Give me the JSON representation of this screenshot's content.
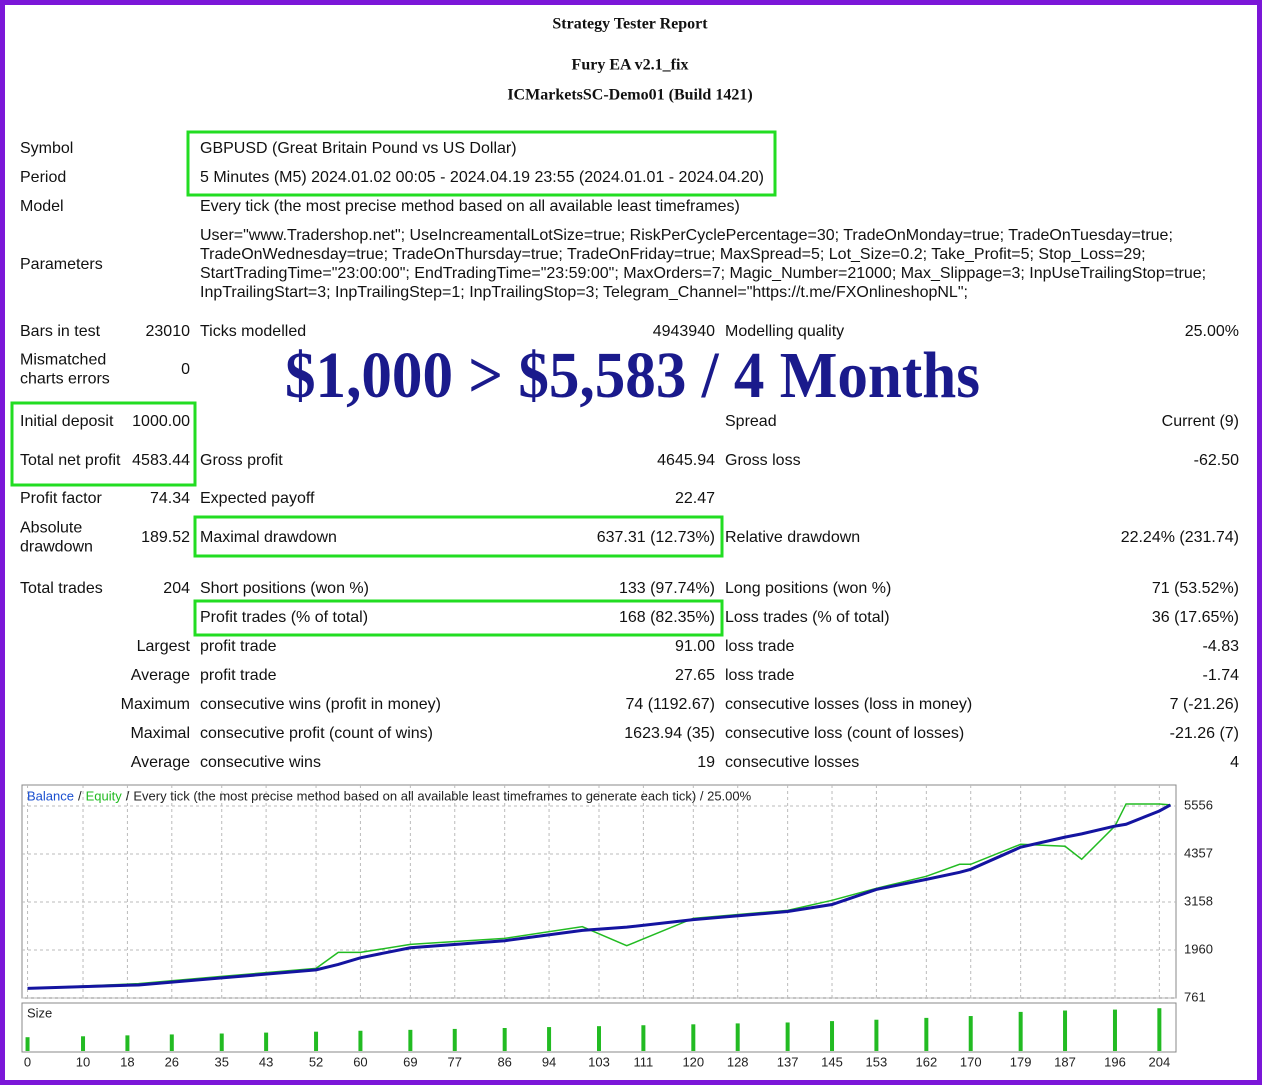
{
  "header": {
    "title": "Strategy Tester Report",
    "subtitle": "Fury EA v2.1_fix",
    "server": "ICMarketsSC-Demo01 (Build 1421)"
  },
  "report": {
    "rows": [
      {
        "a_label": "Symbol",
        "text": "GBPUSD (Great Britain Pound vs US Dollar)"
      },
      {
        "a_label": "Period",
        "text": "5 Minutes (M5) 2024.01.02 00:05 - 2024.04.19 23:55 (2024.01.01 - 2024.04.20)"
      },
      {
        "a_label": "Model",
        "text": "Every tick (the most precise method based on all available least timeframes)"
      },
      {
        "a_label": "Parameters",
        "lines": [
          "User=\"www.Tradershop.net\"; UseIncreamentalLotSize=true; RiskPerCyclePercentage=30; TradeOnMonday=true; TradeOnTuesday=true;",
          "TradeOnWednesday=true; TradeOnThursday=true; TradeOnFriday=true; MaxSpread=5; Lot_Size=0.2; Take_Profit=5; Stop_Loss=29;",
          "StartTradingTime=\"23:00:00\"; EndTradingTime=\"23:59:00\"; MaxOrders=7; Magic_Number=21000; Max_Slippage=3; InpUseTrailingStop=true;",
          "InpTrailingStart=3; InpTrailingStep=1; InpTrailingStop=3; Telegram_Channel=\"https://t.me/FXOnlineshopNL\";"
        ]
      },
      {
        "a_label": "Bars in test",
        "a_value": "23010",
        "b_label": "Ticks modelled",
        "b_value": "4943940",
        "c_label": "Modelling quality",
        "c_value": "25.00%"
      },
      {
        "a_label": "Mismatched charts errors",
        "a_value": "0"
      },
      {
        "a_label": "Initial deposit",
        "a_value": "1000.00",
        "c_label": "Spread",
        "c_value": "Current (9)"
      },
      {
        "a_label": "Total net profit",
        "a_value": "4583.44",
        "b_label": "Gross profit",
        "b_value": "4645.94",
        "c_label": "Gross loss",
        "c_value": "-62.50"
      },
      {
        "a_label": "Profit factor",
        "a_value": "74.34",
        "b_label": "Expected payoff",
        "b_value": "22.47"
      },
      {
        "a_label": "Absolute drawdown",
        "a_value": "189.52",
        "b_label": "Maximal drawdown",
        "b_value": "637.31 (12.73%)",
        "c_label": "Relative drawdown",
        "c_value": "22.24% (231.74)"
      },
      {
        "a_label": "Total trades",
        "a_value": "204",
        "b_label": "Short positions (won %)",
        "b_value": "133 (97.74%)",
        "c_label": "Long positions (won %)",
        "c_value": "71 (53.52%)"
      },
      {
        "b_label": "Profit trades (% of total)",
        "b_value": "168 (82.35%)",
        "c_label": "Loss trades (% of total)",
        "c_value": "36 (17.65%)"
      },
      {
        "a_value": "Largest",
        "b_label": "profit trade",
        "b_value": "91.00",
        "c_label": "loss trade",
        "c_value": "-4.83"
      },
      {
        "a_value": "Average",
        "b_label": "profit trade",
        "b_value": "27.65",
        "c_label": "loss trade",
        "c_value": "-1.74"
      },
      {
        "a_value": "Maximum",
        "b_label": "consecutive wins (profit in money)",
        "b_value": "74 (1192.67)",
        "c_label": "consecutive losses (loss in money)",
        "c_value": "7 (-21.26)"
      },
      {
        "a_value": "Maximal",
        "b_label": "consecutive profit (count of wins)",
        "b_value": "1623.94 (35)",
        "c_label": "consecutive loss (count of losses)",
        "c_value": "-21.26 (7)"
      },
      {
        "a_value": "Average",
        "b_label": "consecutive wins",
        "b_value": "19",
        "c_label": "consecutive losses",
        "c_value": "4"
      }
    ]
  },
  "banner": "$1,000 > $5,583 / 4 Months",
  "chart_data": [
    {
      "type": "line",
      "separator": "/",
      "subtitle": "Every tick (the most precise method based on all available least timeframes to generate each tick) / 25.00%",
      "x": [
        0,
        20,
        35,
        52,
        56,
        60,
        69,
        86,
        100,
        108,
        120,
        137,
        145,
        153,
        162,
        168,
        170,
        179,
        187,
        190,
        196,
        198,
        204,
        206
      ],
      "series": [
        {
          "name": "Balance",
          "color": "#1414a0",
          "values": [
            1000,
            1087,
            1263,
            1464,
            1600,
            1765,
            2016,
            2192,
            2450,
            2530,
            2719,
            2920,
            3096,
            3473,
            3724,
            3900,
            3975,
            4527,
            4778,
            4860,
            5054,
            5100,
            5431,
            5583
          ]
        },
        {
          "name": "Equity",
          "color": "#22bb22",
          "values": [
            1000,
            1120,
            1300,
            1500,
            1900,
            1900,
            2100,
            2250,
            2543,
            2066,
            2750,
            2950,
            3200,
            3500,
            3800,
            4100,
            4100,
            4600,
            4550,
            4226,
            5054,
            5607,
            5607,
            5583
          ]
        }
      ],
      "xlim": [
        -1,
        207
      ],
      "ylim": [
        761,
        6080
      ],
      "yticks": [
        761,
        1960,
        3158,
        4357,
        5556
      ],
      "xticks": [
        0,
        10,
        18,
        26,
        35,
        43,
        52,
        60,
        69,
        77,
        86,
        94,
        103,
        111,
        120,
        128,
        137,
        145,
        153,
        162,
        170,
        179,
        187,
        196,
        204
      ],
      "grid": true
    },
    {
      "type": "bar",
      "title": "Size",
      "color": "#22bb22",
      "x": [
        0,
        10,
        18,
        26,
        35,
        43,
        52,
        60,
        69,
        77,
        86,
        94,
        103,
        111,
        120,
        128,
        137,
        145,
        153,
        162,
        170,
        179,
        187,
        196,
        204
      ],
      "values": [
        0.3,
        0.32,
        0.34,
        0.36,
        0.38,
        0.4,
        0.42,
        0.44,
        0.46,
        0.48,
        0.5,
        0.52,
        0.54,
        0.56,
        0.58,
        0.6,
        0.62,
        0.65,
        0.68,
        0.72,
        0.76,
        0.85,
        0.88,
        0.9,
        0.93
      ],
      "xlim": [
        -1,
        207
      ],
      "ylim": [
        0,
        1
      ]
    }
  ]
}
